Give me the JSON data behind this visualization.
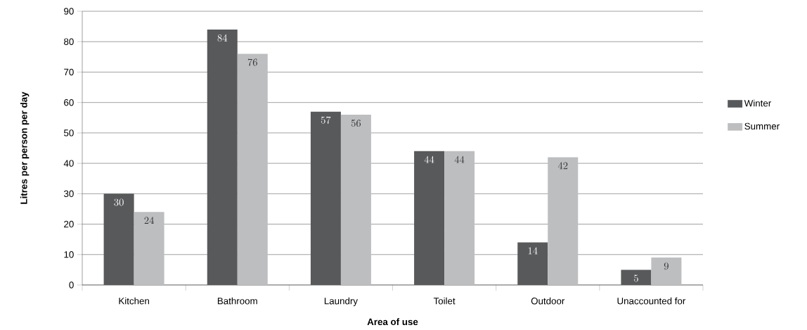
{
  "chart_data": {
    "type": "bar",
    "xlabel": "Area of use",
    "ylabel": "Litres per person per day",
    "categories": [
      "Kitchen",
      "Bathroom",
      "Laundry",
      "Toilet",
      "Outdoor",
      "Unaccounted for"
    ],
    "series": [
      {
        "name": "Winter",
        "color": "#58595b",
        "values": [
          30,
          84,
          57,
          44,
          14,
          5
        ]
      },
      {
        "name": "Summer",
        "color": "#bcbec0",
        "values": [
          24,
          76,
          56,
          44,
          42,
          9
        ]
      }
    ],
    "ylim": [
      0,
      90
    ],
    "yticks": [
      0,
      10,
      20,
      30,
      40,
      50,
      60,
      70,
      80,
      90
    ],
    "grid": "y",
    "legend": "right",
    "data_labels": true
  }
}
